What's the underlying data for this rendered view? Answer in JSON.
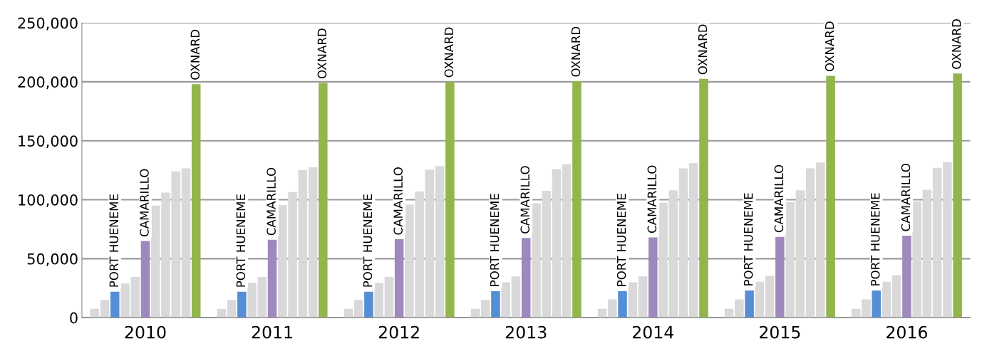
{
  "chart_data": {
    "type": "bar",
    "categories": [
      "2010",
      "2011",
      "2012",
      "2013",
      "2014",
      "2015",
      "2016"
    ],
    "series": [
      {
        "color": "#d9d9d9",
        "values": [
          7500,
          7500,
          7500,
          7500,
          7500,
          7500,
          7500
        ]
      },
      {
        "color": "#d9d9d9",
        "values": [
          15000,
          15000,
          15000,
          15000,
          15500,
          15500,
          15500
        ]
      },
      {
        "name": "PORT HUENEME",
        "color": "#558ed5",
        "values": [
          22000,
          22000,
          22000,
          22500,
          22500,
          23000,
          23000
        ]
      },
      {
        "color": "#d9d9d9",
        "values": [
          29000,
          29500,
          29500,
          30000,
          30000,
          30500,
          30500
        ]
      },
      {
        "color": "#d9d9d9",
        "values": [
          34500,
          34500,
          34500,
          35000,
          35000,
          35500,
          36000
        ]
      },
      {
        "name": "CAMARILLO",
        "color": "#9f88bd",
        "values": [
          65000,
          66000,
          66500,
          67500,
          68000,
          68500,
          69500
        ]
      },
      {
        "color": "#d9d9d9",
        "values": [
          95000,
          95500,
          96000,
          97000,
          97500,
          98000,
          98500
        ]
      },
      {
        "color": "#d9d9d9",
        "values": [
          106000,
          106500,
          107000,
          107500,
          108000,
          108000,
          108500
        ]
      },
      {
        "color": "#d9d9d9",
        "values": [
          124000,
          125000,
          125500,
          126000,
          126500,
          126500,
          127000
        ]
      },
      {
        "color": "#d9d9d9",
        "values": [
          126500,
          127500,
          128500,
          130000,
          131000,
          131500,
          132000
        ]
      },
      {
        "name": "OXNARD",
        "color": "#92b54c",
        "values": [
          198000,
          199000,
          200000,
          200500,
          202500,
          205000,
          207000
        ]
      }
    ],
    "ylim": [
      0,
      250000
    ],
    "yticks": [
      {
        "value": 0,
        "label": "0"
      },
      {
        "value": 50000,
        "label": "50,000"
      },
      {
        "value": 100000,
        "label": "100,000"
      },
      {
        "value": 150000,
        "label": "150,000"
      },
      {
        "value": 200000,
        "label": "200,000"
      },
      {
        "value": 250000,
        "label": "250,000"
      }
    ],
    "grid": "y",
    "legend": false
  }
}
